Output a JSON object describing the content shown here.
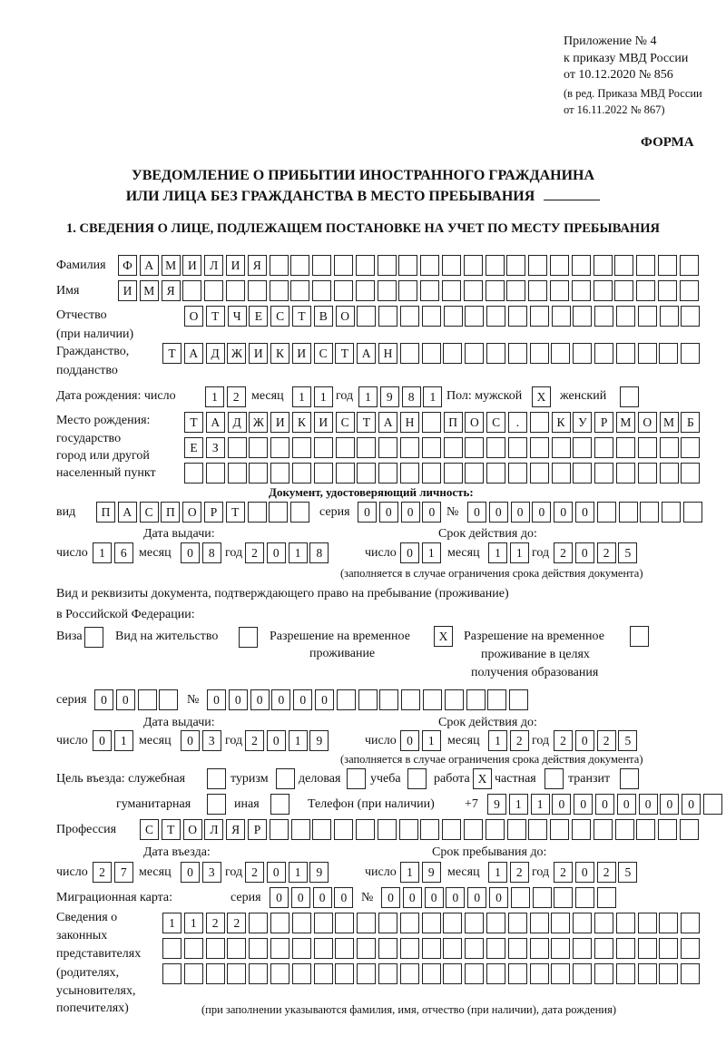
{
  "header": {
    "appendix": [
      "Приложение № 4",
      "к приказу МВД России",
      "от 10.12.2020 № 856"
    ],
    "revision": [
      "(в ред. Приказа МВД России",
      "от 16.11.2022 № 867)"
    ],
    "form_label": "ФОРМА",
    "title_line1": "УВЕДОМЛЕНИЕ О ПРИБЫТИИ ИНОСТРАННОГО ГРАЖДАНИНА",
    "title_line2": "ИЛИ ЛИЦА БЕЗ ГРАЖДАНСТВА В МЕСТО ПРЕБЫВАНИЯ",
    "section1": "1. СВЕДЕНИЯ О ЛИЦЕ, ПОДЛЕЖАЩЕМ ПОСТАНОВКЕ НА УЧЕТ ПО МЕСТУ ПРЕБЫВАНИЯ"
  },
  "labels": {
    "surname": "Фамилия",
    "name": "Имя",
    "patronymic": "Отчество",
    "patronymic2": "(при наличии)",
    "citizenship": "Гражданство,",
    "citizenship2": "подданство",
    "birth_date": "Дата рождения:  число",
    "month": "месяц",
    "year": "год",
    "day": "число",
    "sex": "Пол: мужской",
    "female": "женский",
    "birth_place": [
      "Место рождения:",
      "государство",
      "город или другой",
      "населенный пункт"
    ],
    "id_doc": "Документ, удостоверяющий личность:",
    "kind": "вид",
    "series": "серия",
    "number": "№",
    "issue_date": "Дата выдачи:",
    "valid_until": "Срок действия до:",
    "valid_note": "(заполняется в случае ограничения срока действия документа)",
    "right_doc1": "Вид и реквизиты документа, подтверждающего право на пребывание (проживание)",
    "right_doc2": "в Российской Федерации:",
    "visa": "Виза",
    "residence": "Вид на жительство",
    "trp": [
      "Разрешение на временное",
      "проживание"
    ],
    "trp_edu": [
      "Разрешение на временное",
      "проживание в целях",
      "получения образования"
    ],
    "purpose": "Цель въезда: служебная",
    "tourism": "туризм",
    "business": "деловая",
    "study": "учеба",
    "work": "работа",
    "private": "частная",
    "transit": "транзит",
    "humanitarian": "гуманитарная",
    "other": "иная",
    "phone": "Телефон (при наличии)",
    "phone_prefix": "+7",
    "profession": "Профессия",
    "entry_date": "Дата въезда:",
    "stay_until": "Срок пребывания до:",
    "migration_card": "Миграционная карта:",
    "representatives": [
      "Сведения о",
      "законных",
      "представителях",
      "(родителях,",
      "усыновителях,",
      "попечителях)"
    ],
    "rep_note": "(при заполнении указываются фамилия, имя, отчество (при наличии), дата рождения)"
  },
  "values": {
    "surname": "ФАМИЛИЯ",
    "name": "ИМЯ",
    "patronymic": "ОТЧЕСТВО",
    "citizenship": "ТАДЖИКИСТАН",
    "birth": {
      "day": "12",
      "month": "11",
      "year": "1981"
    },
    "sex_male": "X",
    "sex_female": "",
    "birth_place": [
      "ТАДЖИКИСТАН ПОС. КУРМОМБ",
      "ЕЗ",
      ""
    ],
    "id_doc": {
      "kind": "ПАСПОРТ",
      "series": "0000",
      "number": "000000",
      "issue": {
        "day": "16",
        "month": "08",
        "year": "2018"
      },
      "valid": {
        "day": "01",
        "month": "11",
        "year": "2025"
      }
    },
    "right_doc": {
      "visa": "",
      "residence": "",
      "trp": "X",
      "trp_edu": "",
      "series": "00",
      "number": "000000",
      "issue": {
        "day": "01",
        "month": "03",
        "year": "2019"
      },
      "valid": {
        "day": "01",
        "month": "12",
        "year": "2025"
      }
    },
    "purpose": {
      "official": "",
      "tourism": "",
      "business": "",
      "study": "",
      "work": "X",
      "private": "",
      "transit": "",
      "humanitarian": "",
      "other": ""
    },
    "phone": "9110000000",
    "profession": "СТОЛЯР",
    "entry": {
      "day": "27",
      "month": "03",
      "year": "2019"
    },
    "stay_until": {
      "day": "19",
      "month": "12",
      "year": "2025"
    },
    "migration_card": {
      "series": "0000",
      "number": "000000"
    },
    "representatives": [
      "1122",
      "",
      ""
    ]
  }
}
